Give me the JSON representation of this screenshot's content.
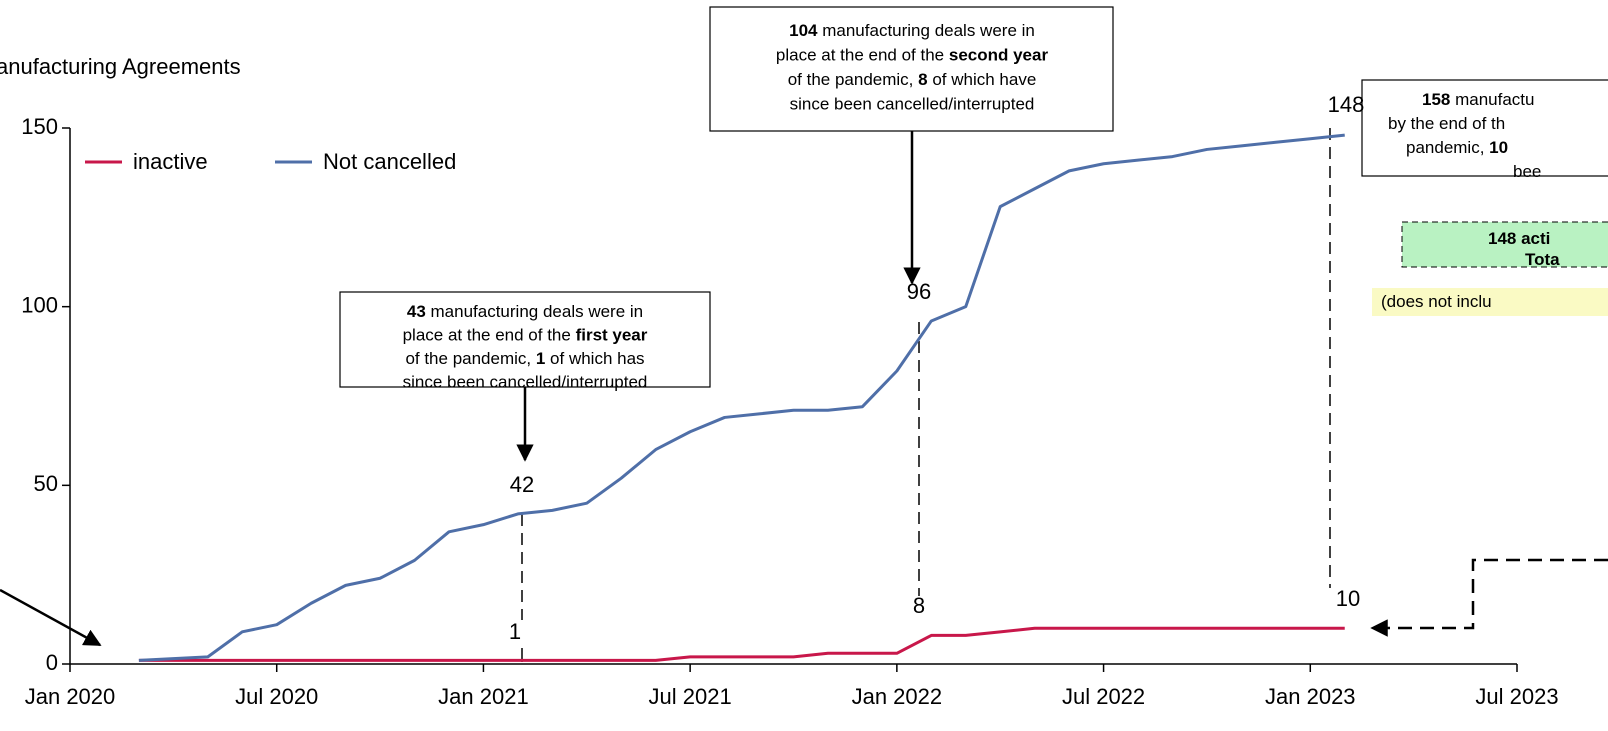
{
  "chart_data": {
    "type": "line",
    "y_axis_label": "anufacturing  Agreements",
    "x": [
      "2020-03",
      "2020-04",
      "2020-05",
      "2020-06",
      "2020-07",
      "2020-08",
      "2020-09",
      "2020-10",
      "2020-11",
      "2020-12",
      "2021-01",
      "2021-02",
      "2021-03",
      "2021-04",
      "2021-05",
      "2021-06",
      "2021-07",
      "2021-08",
      "2021-09",
      "2021-10",
      "2021-11",
      "2021-12",
      "2022-01",
      "2022-02",
      "2022-03",
      "2022-04",
      "2022-05",
      "2022-06",
      "2022-07",
      "2022-08",
      "2022-09",
      "2022-10",
      "2022-11",
      "2022-12",
      "2023-01",
      "2023-02"
    ],
    "series": [
      {
        "name": "inactive",
        "color": "#c8174a",
        "values": [
          1,
          1,
          1,
          1,
          1,
          1,
          1,
          1,
          1,
          1,
          1,
          1,
          1,
          1,
          1,
          1,
          2,
          2,
          2,
          2,
          3,
          3,
          3,
          8,
          8,
          9,
          10,
          10,
          10,
          10,
          10,
          10,
          10,
          10,
          10,
          10
        ]
      },
      {
        "name": "Not cancelled",
        "color": "#4f6fa8",
        "values": [
          1,
          1.5,
          2,
          9,
          11,
          17,
          22,
          24,
          29,
          37,
          39,
          42,
          43,
          45,
          52,
          60,
          65,
          69,
          70,
          71,
          71,
          72,
          82,
          96,
          100,
          128,
          133,
          138,
          140,
          141,
          142,
          144,
          145,
          146,
          147,
          148
        ]
      }
    ],
    "xlim": [
      "2020-01",
      "2023-07"
    ],
    "xticks": [
      {
        "value": "2020-01",
        "label": "Jan 2020"
      },
      {
        "value": "2020-07",
        "label": "Jul 2020"
      },
      {
        "value": "2021-01",
        "label": "Jan 2021"
      },
      {
        "value": "2021-07",
        "label": "Jul 2021"
      },
      {
        "value": "2022-01",
        "label": "Jan 2022"
      },
      {
        "value": "2022-07",
        "label": "Jul 2022"
      },
      {
        "value": "2023-01",
        "label": "Jan 2023"
      },
      {
        "value": "2023-07",
        "label": "Jul 2023"
      }
    ],
    "ylim": [
      0,
      150
    ],
    "yticks": [
      0,
      50,
      100,
      150
    ],
    "legend": "top-left",
    "point_labels": [
      "42",
      "1",
      "96",
      "8",
      "148",
      "10"
    ],
    "annotations": [
      [
        [
          {
            "t": "43",
            "bold": true
          },
          {
            "t": " manufacturing deals were in"
          }
        ],
        [
          {
            "t": "place at the end of the "
          },
          {
            "t": "first year",
            "bold": true
          }
        ],
        [
          {
            "t": "of the pandemic, "
          },
          {
            "t": "1",
            "bold": true
          },
          {
            "t": " of which has"
          }
        ],
        [
          {
            "t": "since been cancelled/interrupted"
          }
        ]
      ],
      [
        [
          {
            "t": "104",
            "bold": true
          },
          {
            "t": " manufacturing deals were in"
          }
        ],
        [
          {
            "t": "place at the end of the "
          },
          {
            "t": "second year",
            "bold": true
          }
        ],
        [
          {
            "t": "of the pandemic, "
          },
          {
            "t": "8",
            "bold": true
          },
          {
            "t": " of which have"
          }
        ],
        [
          {
            "t": "since been cancelled/interrupted"
          }
        ]
      ],
      [
        [
          {
            "t": "158",
            "bold": true
          },
          {
            "t": " manufactu"
          }
        ],
        [
          {
            "t": "by the end of th"
          }
        ],
        [
          {
            "t": "pandemic, "
          },
          {
            "t": "10",
            "bold": true
          }
        ],
        [
          {
            "t": "bee"
          }
        ]
      ],
      [
        [
          {
            "t": "148 acti",
            "bold": true
          }
        ],
        [
          {
            "t": "Tota",
            "bold": true
          }
        ]
      ],
      [
        [
          {
            "t": "(does not inclu"
          }
        ]
      ]
    ]
  }
}
